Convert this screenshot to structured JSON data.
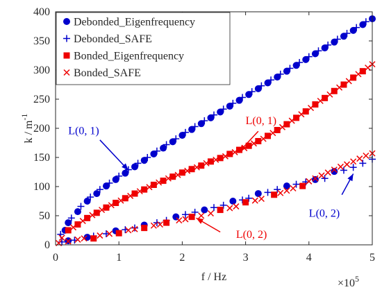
{
  "chart_data": {
    "type": "scatter",
    "xlabel": "f / Hz",
    "ylabel_main": "k / m",
    "ylabel_exp": "-1",
    "x_multiplier_base": "×10",
    "x_multiplier_exp": "5",
    "xlim": [
      0,
      500000
    ],
    "ylim": [
      0,
      400
    ],
    "xticks": [
      0,
      100000,
      200000,
      300000,
      400000,
      500000
    ],
    "xtick_labels": [
      "0",
      "1",
      "2",
      "3",
      "4",
      "5"
    ],
    "yticks": [
      0,
      50,
      100,
      150,
      200,
      250,
      300,
      350,
      400
    ],
    "ytick_labels": [
      "0",
      "50",
      "100",
      "150",
      "200",
      "250",
      "300",
      "350",
      "400"
    ],
    "grid": false,
    "legend_position": "top-left",
    "colors": {
      "blue": "#0000CC",
      "red": "#EE0000",
      "axis": "#262626"
    },
    "series": [
      {
        "name": "Debonded_Eigenfrequency",
        "marker": "circle",
        "color": "#0000CC",
        "x": [
          15000,
          20000,
          35000,
          50000,
          65000,
          80000,
          95000,
          110000,
          125000,
          140000,
          155000,
          170000,
          185000,
          200000,
          215000,
          230000,
          245000,
          260000,
          275000,
          290000,
          305000,
          320000,
          335000,
          350000,
          365000,
          380000,
          395000,
          410000,
          425000,
          440000,
          455000,
          470000,
          485000,
          500000
        ],
        "y": [
          25,
          38,
          57,
          75,
          88,
          101,
          112,
          123,
          134,
          145,
          156,
          166,
          177,
          188,
          198,
          208,
          218,
          228,
          238,
          248,
          258,
          268,
          278,
          288,
          298,
          308,
          318,
          328,
          338,
          348,
          358,
          368,
          378,
          388
        ]
      },
      {
        "name": "Debonded_SAFE",
        "marker": "plus",
        "color": "#0000CC",
        "x": [
          8000,
          25000,
          40000,
          55000,
          70000,
          85000,
          100000,
          115000,
          130000,
          145000,
          160000,
          175000,
          190000,
          205000,
          220000,
          235000,
          250000,
          265000,
          280000,
          295000,
          310000,
          325000,
          340000,
          355000,
          370000,
          385000,
          400000,
          415000,
          430000,
          445000,
          460000,
          475000,
          490000
        ],
        "y": [
          18,
          46,
          66,
          82,
          95,
          106,
          118,
          129,
          140,
          150,
          161,
          172,
          182,
          193,
          203,
          213,
          223,
          233,
          243,
          253,
          263,
          273,
          283,
          293,
          303,
          313,
          323,
          333,
          343,
          353,
          363,
          373,
          383
        ]
      },
      {
        "name": "Debonded_Eigenfrequency",
        "marker": "circle",
        "color": "#0000CC",
        "x": [
          20000,
          50000,
          95000,
          140000,
          190000,
          235000,
          280000,
          320000,
          365000,
          410000,
          440000
        ],
        "y": [
          7,
          13,
          24,
          34,
          48,
          60,
          75,
          88,
          101,
          112,
          126
        ]
      },
      {
        "name": "Debonded_SAFE",
        "marker": "plus",
        "color": "#0000CC",
        "x": [
          10000,
          30000,
          60000,
          80000,
          110000,
          125000,
          160000,
          175000,
          205000,
          220000,
          250000,
          265000,
          295000,
          305000,
          335000,
          350000,
          380000,
          395000,
          425000,
          455000,
          470000,
          485000,
          500000
        ],
        "y": [
          5,
          8,
          15,
          19,
          26,
          29,
          38,
          42,
          52,
          56,
          64,
          68,
          77,
          80,
          90,
          95,
          104,
          108,
          114,
          128,
          133,
          140,
          147
        ]
      },
      {
        "name": "Bonded_Eigenfrequency",
        "marker": "square",
        "color": "#EE0000",
        "x": [
          20000,
          35000,
          50000,
          65000,
          80000,
          95000,
          110000,
          125000,
          140000,
          155000,
          170000,
          185000,
          200000,
          215000,
          230000,
          245000,
          260000,
          275000,
          290000,
          305000,
          320000,
          335000,
          350000,
          365000,
          380000,
          395000,
          410000,
          425000,
          440000,
          455000,
          470000,
          485000
        ],
        "y": [
          25,
          35,
          46,
          55,
          64,
          72,
          80,
          88,
          95,
          103,
          110,
          117,
          124,
          130,
          136,
          143,
          149,
          156,
          163,
          170,
          178,
          187,
          197,
          207,
          218,
          229,
          241,
          252,
          264,
          275,
          287,
          298
        ]
      },
      {
        "name": "Bonded_SAFE",
        "marker": "cross",
        "color": "#EE0000",
        "x": [
          10000,
          28000,
          43000,
          58000,
          73000,
          88000,
          103000,
          118000,
          133000,
          148000,
          163000,
          178000,
          193000,
          208000,
          223000,
          238000,
          253000,
          268000,
          283000,
          298000,
          313000,
          328000,
          343000,
          358000,
          373000,
          388000,
          403000,
          418000,
          433000,
          448000,
          463000,
          478000,
          493000,
          500000
        ],
        "y": [
          12,
          30,
          41,
          51,
          60,
          68,
          76,
          84,
          92,
          99,
          107,
          114,
          120,
          127,
          133,
          140,
          146,
          152,
          159,
          166,
          174,
          182,
          192,
          202,
          213,
          224,
          235,
          247,
          258,
          270,
          281,
          293,
          304,
          310
        ]
      },
      {
        "name": "Bonded_Eigenfrequency",
        "marker": "square",
        "color": "#EE0000",
        "x": [
          60000,
          100000,
          140000,
          175000,
          215000,
          260000,
          300000,
          345000,
          390000
        ],
        "y": [
          11,
          20,
          29,
          38,
          48,
          60,
          73,
          86,
          101
        ]
      },
      {
        "name": "Bonded_SAFE",
        "marker": "cross",
        "color": "#EE0000",
        "x": [
          5000,
          20000,
          35000,
          45000,
          70000,
          85000,
          115000,
          125000,
          155000,
          165000,
          195000,
          205000,
          230000,
          245000,
          275000,
          285000,
          315000,
          325000,
          355000,
          365000,
          375000,
          400000,
          410000,
          420000,
          430000,
          440000,
          450000,
          460000,
          470000,
          480000,
          490000,
          500000
        ],
        "y": [
          3,
          6,
          9,
          11,
          16,
          19,
          25,
          27,
          33,
          35,
          42,
          44,
          50,
          54,
          63,
          66,
          76,
          79,
          89,
          93,
          97,
          109,
          114,
          119,
          124,
          129,
          134,
          138,
          143,
          148,
          153,
          157
        ]
      }
    ],
    "legend": [
      {
        "label": "Debonded_Eigenfrequency",
        "marker": "circle",
        "color": "#0000CC"
      },
      {
        "label": "Debonded_SAFE",
        "marker": "plus",
        "color": "#0000CC"
      },
      {
        "label": "Bonded_Eigenfrequency",
        "marker": "square",
        "color": "#EE0000"
      },
      {
        "label": "Bonded_SAFE",
        "marker": "cross",
        "color": "#EE0000"
      }
    ],
    "annotations": [
      {
        "text": "L(0, 1)",
        "color": "#0000CC",
        "tx": 20000,
        "ty": 190,
        "ax": 70000,
        "ay": 180,
        "hx": 115000,
        "hy": 128
      },
      {
        "text": "L(0, 1)",
        "color": "#EE0000",
        "tx": 300000,
        "ty": 207,
        "ax": 320000,
        "ay": 195,
        "hx": 290000,
        "hy": 160
      },
      {
        "text": "L(0, 2)",
        "color": "#EE0000",
        "tx": 285000,
        "ty": 12,
        "ax": 260000,
        "ay": 22,
        "hx": 222000,
        "hy": 46
      },
      {
        "text": "L(0, 2)",
        "color": "#0000CC",
        "tx": 400000,
        "ty": 48,
        "ax": 452000,
        "ay": 86,
        "hx": 470000,
        "hy": 122
      }
    ]
  }
}
